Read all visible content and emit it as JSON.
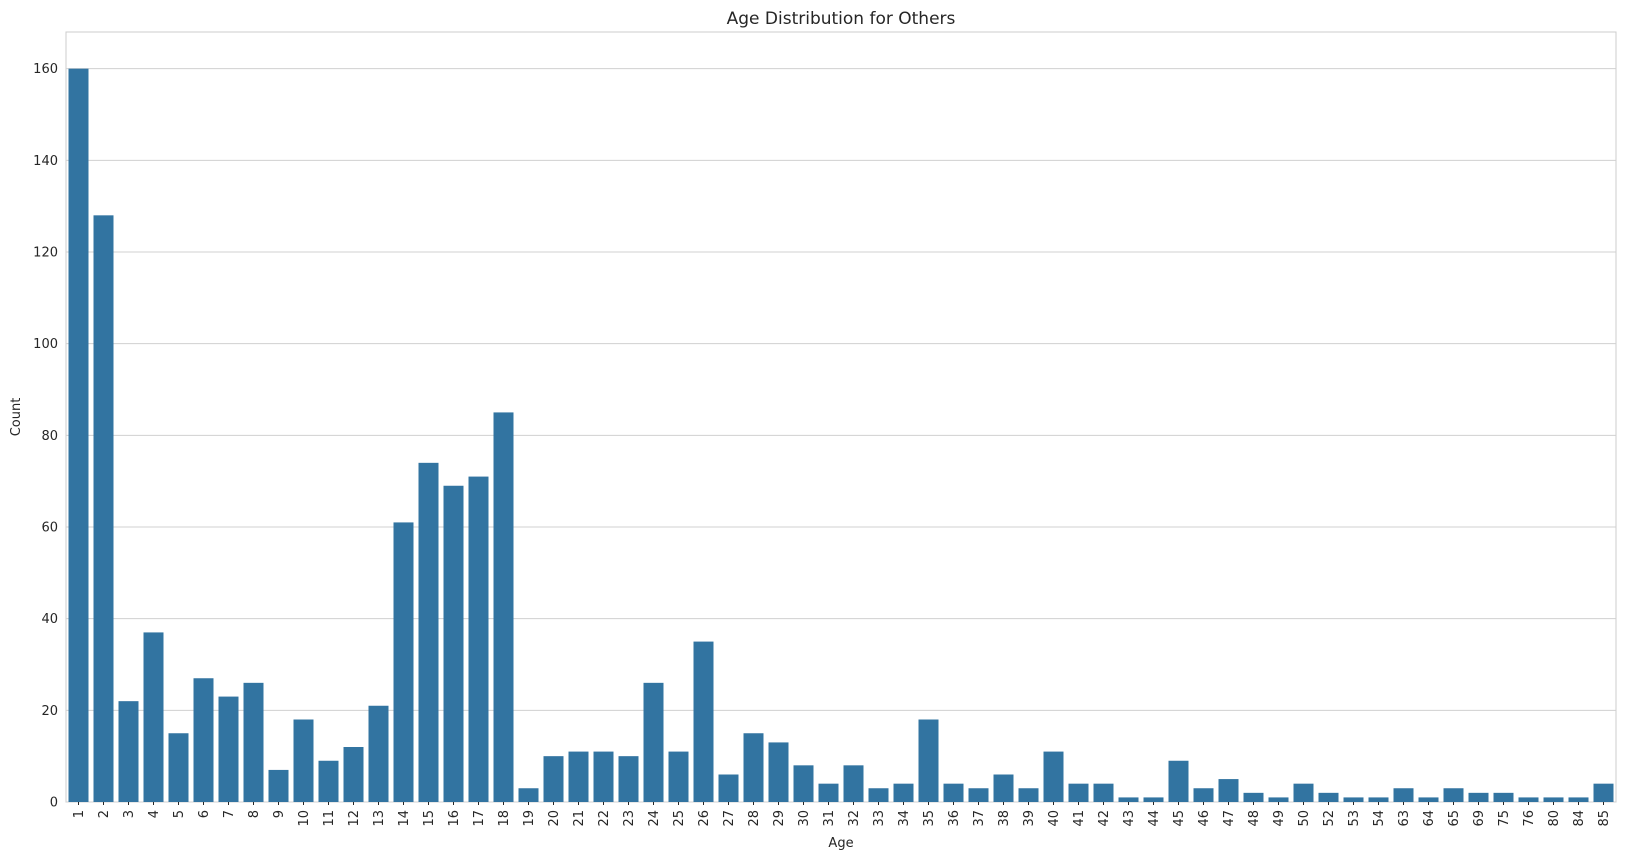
{
  "chart_data": {
    "type": "bar",
    "title": "Age Distribution for Others",
    "xlabel": "Age",
    "ylabel": "Count",
    "ylim": [
      0,
      168
    ],
    "yticks": [
      0,
      20,
      40,
      60,
      80,
      100,
      120,
      140,
      160
    ],
    "grid": "horizontal",
    "color": "#3274a1",
    "categories": [
      "1",
      "2",
      "3",
      "4",
      "5",
      "6",
      "7",
      "8",
      "9",
      "10",
      "11",
      "12",
      "13",
      "14",
      "15",
      "16",
      "17",
      "18",
      "19",
      "20",
      "21",
      "22",
      "23",
      "24",
      "25",
      "26",
      "27",
      "28",
      "29",
      "30",
      "31",
      "32",
      "33",
      "34",
      "35",
      "36",
      "37",
      "38",
      "39",
      "40",
      "41",
      "42",
      "43",
      "44",
      "45",
      "46",
      "47",
      "48",
      "49",
      "50",
      "52",
      "53",
      "54",
      "63",
      "64",
      "65",
      "69",
      "75",
      "76",
      "80",
      "84",
      "85"
    ],
    "values": [
      160,
      128,
      22,
      37,
      15,
      27,
      23,
      26,
      7,
      18,
      9,
      12,
      21,
      61,
      74,
      69,
      71,
      85,
      3,
      10,
      11,
      11,
      10,
      26,
      11,
      35,
      6,
      15,
      13,
      8,
      4,
      8,
      3,
      4,
      18,
      4,
      3,
      6,
      3,
      11,
      4,
      4,
      1,
      1,
      9,
      3,
      5,
      2,
      1,
      4,
      2,
      1,
      1,
      3,
      1,
      3,
      2,
      2,
      1,
      1,
      1,
      4
    ]
  }
}
